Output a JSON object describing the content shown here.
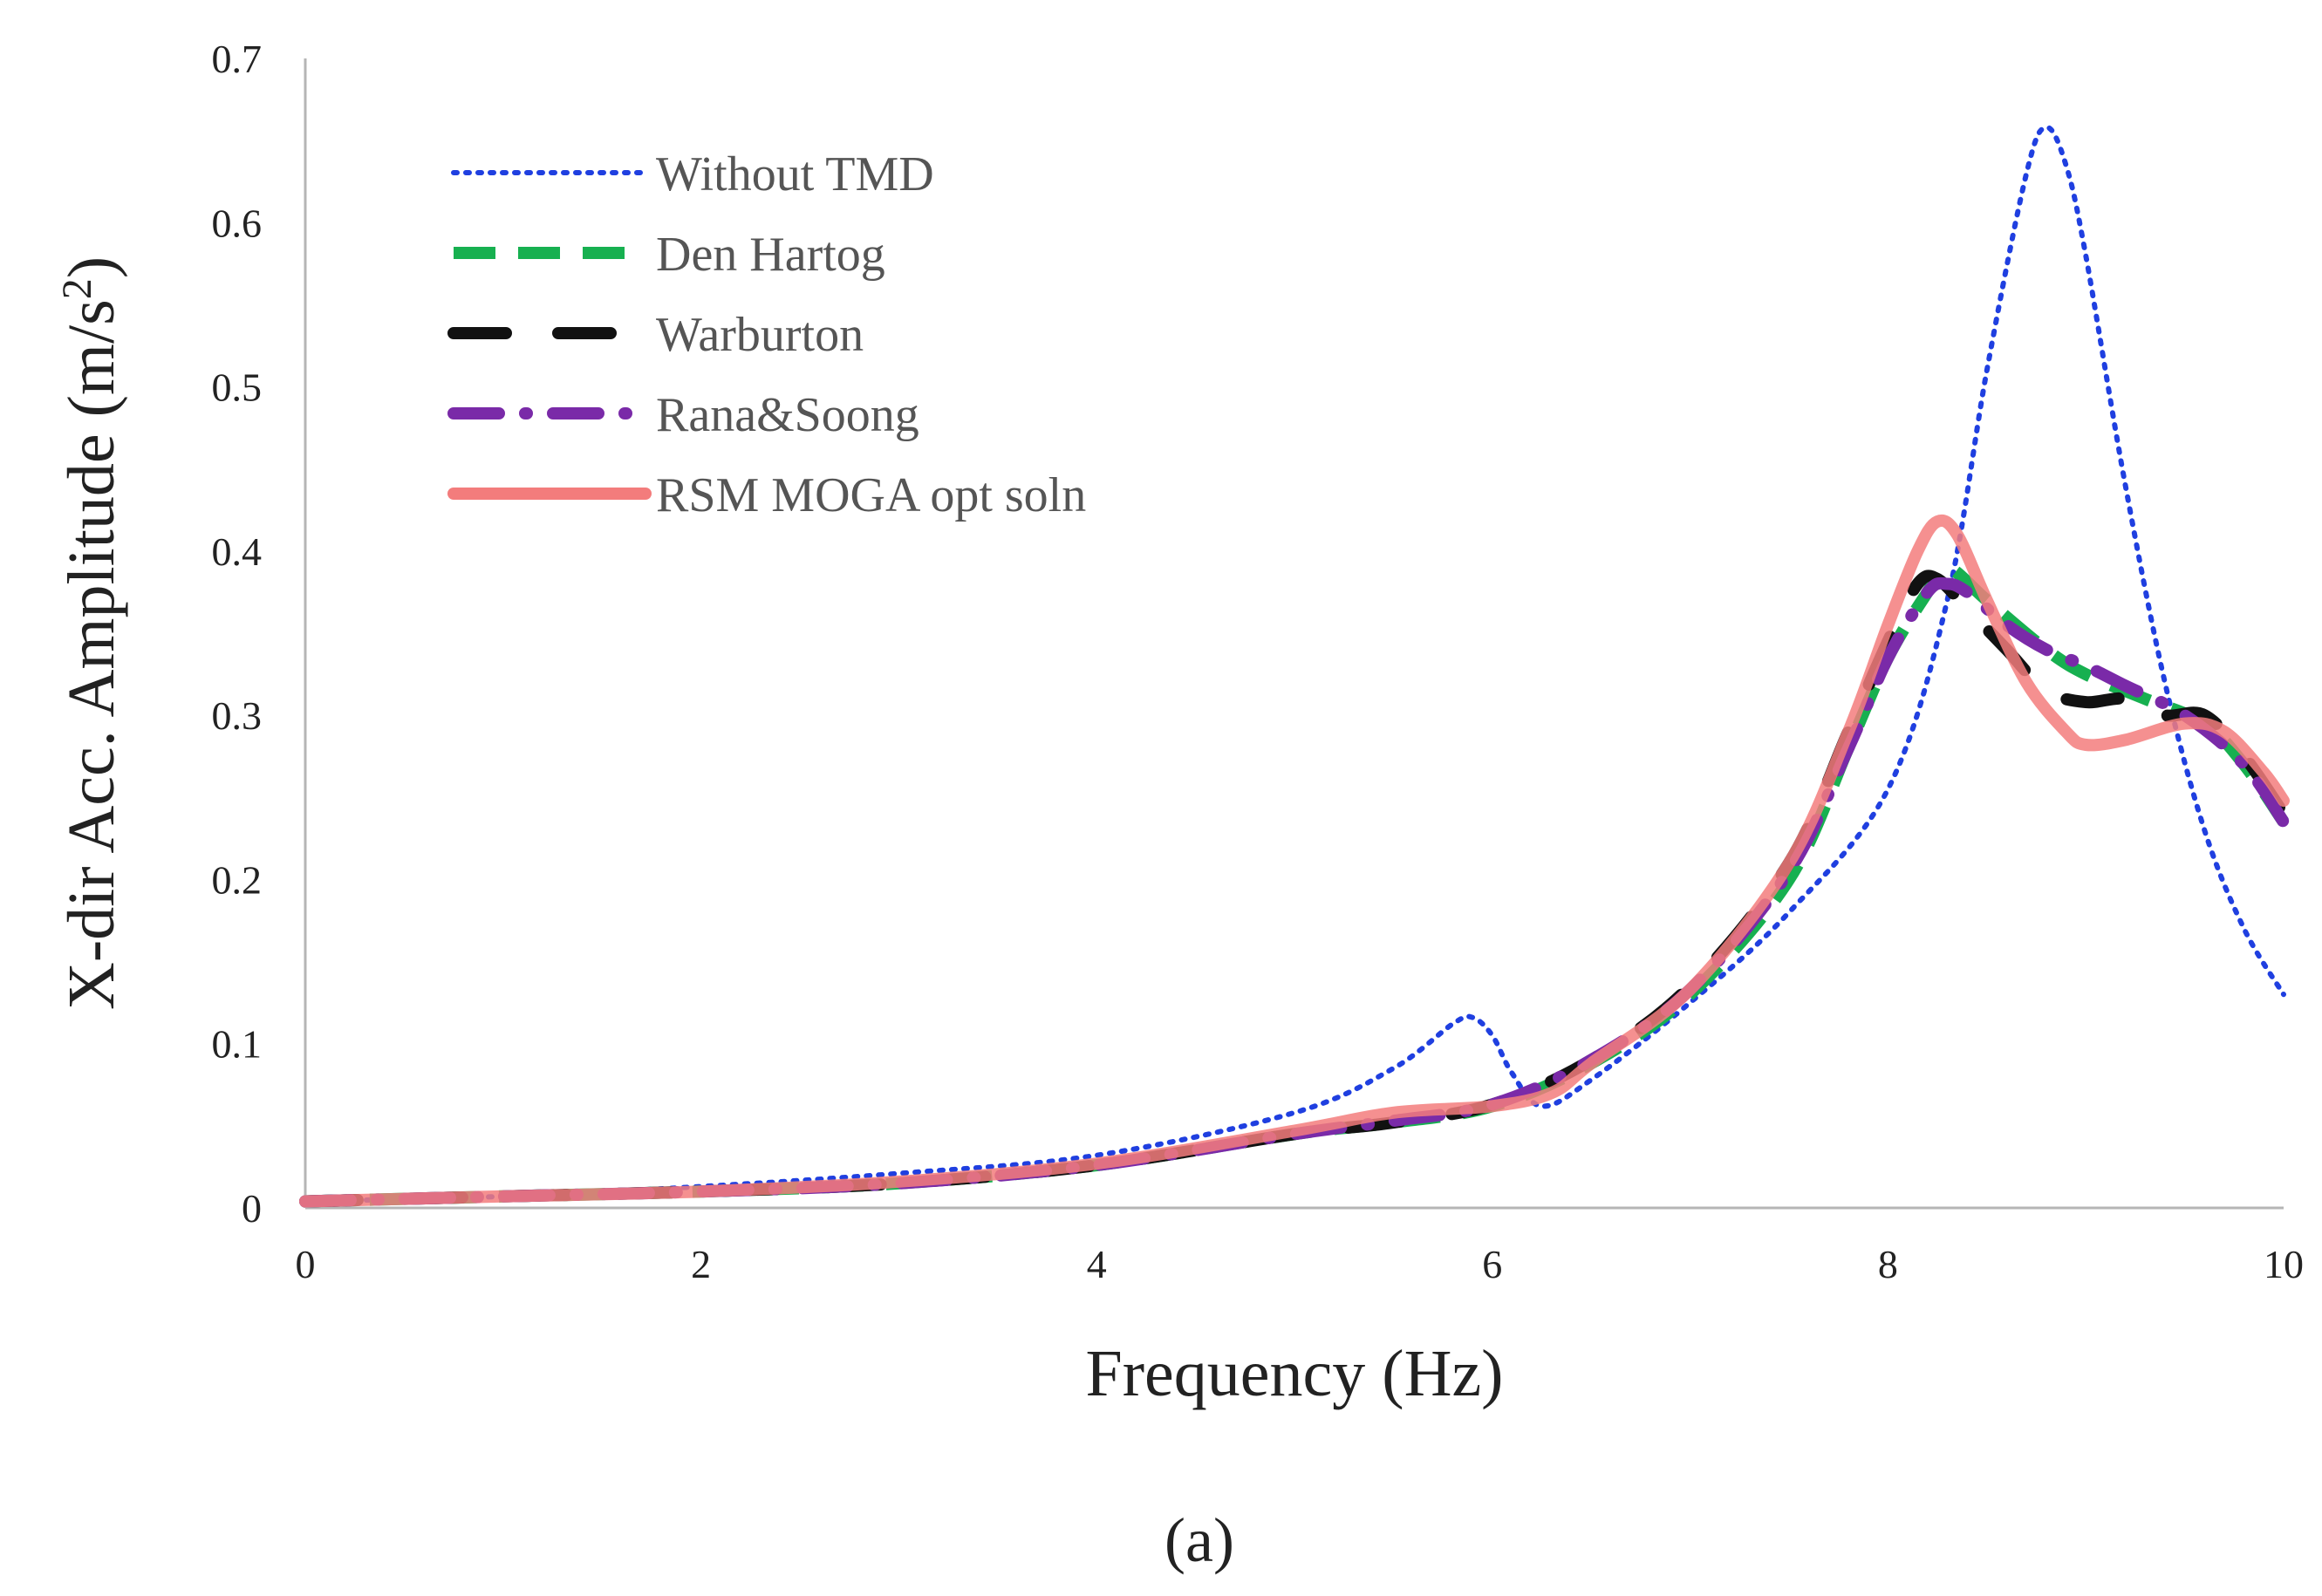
{
  "chart_data": {
    "type": "line",
    "title": "",
    "xlabel": "Frequency (Hz)",
    "ylabel_main": "X-dir Acc. Amplitude (m/s",
    "ylabel_sup": "2",
    "ylabel_end": ")",
    "xlim": [
      0,
      10
    ],
    "ylim": [
      0,
      0.7
    ],
    "xticks": [
      "0",
      "2",
      "4",
      "6",
      "8",
      "10"
    ],
    "yticks": [
      "0",
      "0.1",
      "0.2",
      "0.3",
      "0.4",
      "0.5",
      "0.6",
      "0.7"
    ],
    "grid": false,
    "legend_position": "top-left",
    "series": [
      {
        "name": "Without TMD",
        "color": "#1f3fe0",
        "style": "dotted",
        "points": [
          [
            0,
            0.004
          ],
          [
            1,
            0.007
          ],
          [
            2,
            0.013
          ],
          [
            3,
            0.021
          ],
          [
            4,
            0.032
          ],
          [
            5,
            0.058
          ],
          [
            5.5,
            0.085
          ],
          [
            5.8,
            0.112
          ],
          [
            5.9,
            0.116
          ],
          [
            6.0,
            0.105
          ],
          [
            6.1,
            0.082
          ],
          [
            6.25,
            0.062
          ],
          [
            6.5,
            0.078
          ],
          [
            7,
            0.125
          ],
          [
            7.5,
            0.18
          ],
          [
            8,
            0.255
          ],
          [
            8.3,
            0.37
          ],
          [
            8.5,
            0.51
          ],
          [
            8.7,
            0.63
          ],
          [
            8.8,
            0.658
          ],
          [
            8.9,
            0.635
          ],
          [
            9.0,
            0.58
          ],
          [
            9.2,
            0.44
          ],
          [
            9.4,
            0.32
          ],
          [
            9.6,
            0.23
          ],
          [
            9.8,
            0.17
          ],
          [
            10,
            0.13
          ]
        ]
      },
      {
        "name": "Den Hartog",
        "color": "#17b050",
        "style": "dashed",
        "points": [
          [
            0,
            0.004
          ],
          [
            1,
            0.007
          ],
          [
            2,
            0.01
          ],
          [
            3,
            0.015
          ],
          [
            4,
            0.026
          ],
          [
            5,
            0.045
          ],
          [
            5.5,
            0.052
          ],
          [
            6,
            0.062
          ],
          [
            6.5,
            0.088
          ],
          [
            7,
            0.13
          ],
          [
            7.5,
            0.2
          ],
          [
            7.8,
            0.28
          ],
          [
            8.0,
            0.335
          ],
          [
            8.2,
            0.375
          ],
          [
            8.3,
            0.39
          ],
          [
            8.5,
            0.37
          ],
          [
            8.8,
            0.34
          ],
          [
            9.0,
            0.325
          ],
          [
            9.3,
            0.31
          ],
          [
            9.6,
            0.295
          ],
          [
            9.8,
            0.27
          ],
          [
            10,
            0.235
          ]
        ]
      },
      {
        "name": "Warburton",
        "color": "#111111",
        "style": "longdash",
        "points": [
          [
            0,
            0.004
          ],
          [
            1,
            0.007
          ],
          [
            2,
            0.01
          ],
          [
            3,
            0.015
          ],
          [
            4,
            0.026
          ],
          [
            5,
            0.045
          ],
          [
            5.5,
            0.052
          ],
          [
            6,
            0.063
          ],
          [
            6.5,
            0.09
          ],
          [
            7,
            0.135
          ],
          [
            7.5,
            0.21
          ],
          [
            7.8,
            0.29
          ],
          [
            8.0,
            0.345
          ],
          [
            8.15,
            0.38
          ],
          [
            8.25,
            0.383
          ],
          [
            8.4,
            0.365
          ],
          [
            8.6,
            0.34
          ],
          [
            8.8,
            0.315
          ],
          [
            9.0,
            0.308
          ],
          [
            9.2,
            0.31
          ],
          [
            9.4,
            0.3
          ],
          [
            9.6,
            0.3
          ],
          [
            9.8,
            0.275
          ],
          [
            10,
            0.24
          ]
        ]
      },
      {
        "name": "Rana&Soong",
        "color": "#7a2aa8",
        "style": "dashdot",
        "points": [
          [
            0,
            0.004
          ],
          [
            1,
            0.007
          ],
          [
            2,
            0.01
          ],
          [
            3,
            0.015
          ],
          [
            4,
            0.026
          ],
          [
            5,
            0.045
          ],
          [
            5.5,
            0.053
          ],
          [
            6,
            0.063
          ],
          [
            6.5,
            0.09
          ],
          [
            7,
            0.133
          ],
          [
            7.5,
            0.205
          ],
          [
            7.8,
            0.28
          ],
          [
            8.0,
            0.335
          ],
          [
            8.2,
            0.375
          ],
          [
            8.3,
            0.38
          ],
          [
            8.4,
            0.375
          ],
          [
            8.6,
            0.355
          ],
          [
            8.8,
            0.34
          ],
          [
            9.0,
            0.33
          ],
          [
            9.2,
            0.318
          ],
          [
            9.5,
            0.3
          ],
          [
            9.8,
            0.27
          ],
          [
            10,
            0.235
          ]
        ]
      },
      {
        "name": "RSM MOGA opt soln",
        "color": "#f37c7c",
        "style": "solid",
        "points": [
          [
            0,
            0.004
          ],
          [
            1,
            0.007
          ],
          [
            2,
            0.01
          ],
          [
            3,
            0.016
          ],
          [
            4,
            0.027
          ],
          [
            5,
            0.047
          ],
          [
            5.5,
            0.058
          ],
          [
            6,
            0.062
          ],
          [
            6.3,
            0.07
          ],
          [
            6.5,
            0.088
          ],
          [
            7,
            0.133
          ],
          [
            7.5,
            0.21
          ],
          [
            7.8,
            0.29
          ],
          [
            8.0,
            0.355
          ],
          [
            8.15,
            0.4
          ],
          [
            8.25,
            0.418
          ],
          [
            8.35,
            0.41
          ],
          [
            8.5,
            0.37
          ],
          [
            8.7,
            0.32
          ],
          [
            8.9,
            0.29
          ],
          [
            9.0,
            0.282
          ],
          [
            9.2,
            0.285
          ],
          [
            9.5,
            0.295
          ],
          [
            9.7,
            0.29
          ],
          [
            9.9,
            0.265
          ],
          [
            10,
            0.248
          ]
        ]
      }
    ]
  },
  "caption": "(a)"
}
